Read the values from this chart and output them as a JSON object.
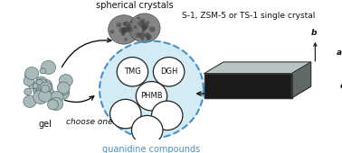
{
  "bg_color": "#ffffff",
  "gel_label": "gel",
  "spherical_label": "spherical crystals",
  "guanidine_label": "guanidine compounds",
  "crystal_label": "S-1, ZSM-5 or TS-1 single crystal",
  "choose_label": "choose one",
  "tmg_label": "TMG",
  "dgh_label": "DGH",
  "phmb_label": "PHMB",
  "circle_fill": "#cce8f4",
  "circle_edge": "#4a90c4",
  "small_circle_fill": "#ffffff",
  "small_circle_edge": "#222222",
  "crystal_top_color": "#b8c4c4",
  "crystal_bottom_color": "#1a1a1a",
  "crystal_side_color": "#606868",
  "axis_color": "#222222",
  "arrow_color": "#111111",
  "text_color": "#111111",
  "gel_color": "#aababa",
  "gel_dot_color": "#557070",
  "sph_color": "#787878",
  "sph_dot_color": "#444444"
}
